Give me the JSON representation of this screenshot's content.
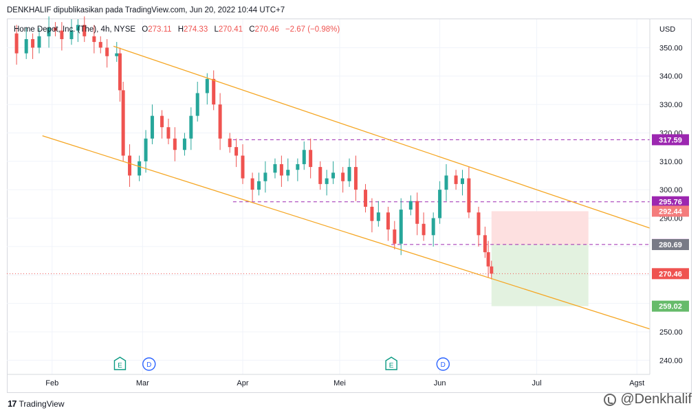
{
  "header": {
    "attribution": "DENKHALIF dipublikasikan pada TradingView.com, Jun 20, 2022 10:44 UTC+7"
  },
  "legend": {
    "symbol": "Home Depot, Inc. (The), 4h, NYSE",
    "open_label": "O",
    "open": "273.11",
    "high_label": "H",
    "high": "274.33",
    "low_label": "L",
    "low": "270.41",
    "close_label": "C",
    "close": "270.46",
    "change": "−2.67 (−0.98%)"
  },
  "footer": {
    "brand": "TradingView",
    "logo_glyph": "17",
    "watermark": "@Denkhalif"
  },
  "colors": {
    "up": "#26a69a",
    "down": "#ef5350",
    "channel": "#f5a623",
    "level": "#9c27b0",
    "profit_zone": "#e3f2e0",
    "loss_zone": "#fde0e0",
    "grid": "#f0f3fa",
    "axis_text": "#131722"
  },
  "chart_data": {
    "type": "candlestick",
    "symbol": "Home Depot, Inc. (The)",
    "interval": "4h",
    "exchange": "NYSE",
    "currency": "USD",
    "ylim": [
      235,
      360
    ],
    "x_range": [
      "2022-01-18",
      "2022-08-05"
    ],
    "x_ticks": [
      {
        "label": "Feb",
        "date": "2022-02-01"
      },
      {
        "label": "Mar",
        "date": "2022-03-01"
      },
      {
        "label": "Apr",
        "date": "2022-04-01"
      },
      {
        "label": "Mei",
        "date": "2022-05-01"
      },
      {
        "label": "Jun",
        "date": "2022-06-01"
      },
      {
        "label": "Jul",
        "date": "2022-07-01"
      },
      {
        "label": "Agst",
        "date": "2022-08-01"
      }
    ],
    "y_ticks": [
      "240.00",
      "250.00",
      "260.00",
      "270.00",
      "280.00",
      "290.00",
      "300.00",
      "310.00",
      "320.00",
      "330.00",
      "340.00",
      "350.00"
    ],
    "y_axis_label": "USD",
    "close_series": [
      {
        "date": "2022-01-19",
        "close": 355
      },
      {
        "date": "2022-01-21",
        "close": 348
      },
      {
        "date": "2022-01-24",
        "close": 353
      },
      {
        "date": "2022-01-26",
        "close": 350
      },
      {
        "date": "2022-01-28",
        "close": 354
      },
      {
        "date": "2022-01-31",
        "close": 357
      },
      {
        "date": "2022-02-02",
        "close": 356
      },
      {
        "date": "2022-02-04",
        "close": 353
      },
      {
        "date": "2022-02-07",
        "close": 356
      },
      {
        "date": "2022-02-09",
        "close": 358
      },
      {
        "date": "2022-02-11",
        "close": 354
      },
      {
        "date": "2022-02-14",
        "close": 352
      },
      {
        "date": "2022-02-16",
        "close": 350
      },
      {
        "date": "2022-02-18",
        "close": 347
      },
      {
        "date": "2022-02-21",
        "close": 348
      },
      {
        "date": "2022-02-22",
        "close": 335
      },
      {
        "date": "2022-02-23",
        "close": 312
      },
      {
        "date": "2022-02-25",
        "close": 305
      },
      {
        "date": "2022-02-28",
        "close": 310
      },
      {
        "date": "2022-03-02",
        "close": 318
      },
      {
        "date": "2022-03-04",
        "close": 326
      },
      {
        "date": "2022-03-07",
        "close": 322
      },
      {
        "date": "2022-03-09",
        "close": 318
      },
      {
        "date": "2022-03-11",
        "close": 314
      },
      {
        "date": "2022-03-14",
        "close": 318
      },
      {
        "date": "2022-03-16",
        "close": 326
      },
      {
        "date": "2022-03-18",
        "close": 334
      },
      {
        "date": "2022-03-21",
        "close": 339
      },
      {
        "date": "2022-03-23",
        "close": 330
      },
      {
        "date": "2022-03-25",
        "close": 318
      },
      {
        "date": "2022-03-28",
        "close": 315
      },
      {
        "date": "2022-03-30",
        "close": 312
      },
      {
        "date": "2022-04-01",
        "close": 304
      },
      {
        "date": "2022-04-04",
        "close": 300
      },
      {
        "date": "2022-04-06",
        "close": 303
      },
      {
        "date": "2022-04-08",
        "close": 306
      },
      {
        "date": "2022-04-11",
        "close": 309
      },
      {
        "date": "2022-04-13",
        "close": 305
      },
      {
        "date": "2022-04-15",
        "close": 307
      },
      {
        "date": "2022-04-18",
        "close": 309
      },
      {
        "date": "2022-04-20",
        "close": 314
      },
      {
        "date": "2022-04-22",
        "close": 308
      },
      {
        "date": "2022-04-25",
        "close": 302
      },
      {
        "date": "2022-04-27",
        "close": 304
      },
      {
        "date": "2022-04-29",
        "close": 306
      },
      {
        "date": "2022-05-02",
        "close": 303
      },
      {
        "date": "2022-05-04",
        "close": 308
      },
      {
        "date": "2022-05-06",
        "close": 300
      },
      {
        "date": "2022-05-09",
        "close": 294
      },
      {
        "date": "2022-05-11",
        "close": 289
      },
      {
        "date": "2022-05-13",
        "close": 292
      },
      {
        "date": "2022-05-16",
        "close": 286
      },
      {
        "date": "2022-05-18",
        "close": 281
      },
      {
        "date": "2022-05-20",
        "close": 293
      },
      {
        "date": "2022-05-23",
        "close": 296
      },
      {
        "date": "2022-05-25",
        "close": 288
      },
      {
        "date": "2022-05-27",
        "close": 284
      },
      {
        "date": "2022-05-30",
        "close": 290
      },
      {
        "date": "2022-06-01",
        "close": 300
      },
      {
        "date": "2022-06-03",
        "close": 305
      },
      {
        "date": "2022-06-06",
        "close": 302
      },
      {
        "date": "2022-06-08",
        "close": 304
      },
      {
        "date": "2022-06-10",
        "close": 292
      },
      {
        "date": "2022-06-13",
        "close": 284
      },
      {
        "date": "2022-06-15",
        "close": 278
      },
      {
        "date": "2022-06-16",
        "close": 273
      },
      {
        "date": "2022-06-17",
        "close": 270.46
      }
    ],
    "channel_lines": [
      {
        "name": "upper",
        "from": {
          "date": "2022-02-20",
          "price": 350.5
        },
        "to": {
          "date": "2022-08-05",
          "price": 286.5
        }
      },
      {
        "name": "lower",
        "from": {
          "date": "2022-01-29",
          "price": 319.0
        },
        "to": {
          "date": "2022-08-05",
          "price": 251.0
        }
      }
    ],
    "levels": [
      {
        "name": "resistance",
        "price": 317.59,
        "label": "317.59",
        "from": "2022-03-29",
        "to": "2022-08-05",
        "style": "dashed"
      },
      {
        "name": "support",
        "price": 295.76,
        "label": "295.76",
        "from": "2022-03-29",
        "to": "2022-08-05",
        "style": "dashed"
      },
      {
        "name": "entry",
        "price": 280.73,
        "label": "280.73",
        "from": "2022-05-17",
        "to": "2022-08-05",
        "style": "dashed"
      }
    ],
    "position": {
      "type": "short",
      "entry": 280.69,
      "entry_label": "280.69",
      "stop": 292.44,
      "stop_label": "292.44",
      "target": 259.02,
      "target_label": "259.02",
      "from": "2022-06-17",
      "to": "2022-07-17"
    },
    "last_price": {
      "price": 270.46,
      "label": "270.46"
    },
    "events": [
      {
        "type": "earnings",
        "glyph": "E",
        "date": "2022-02-22"
      },
      {
        "type": "dividend",
        "glyph": "D",
        "date": "2022-03-03"
      },
      {
        "type": "earnings",
        "glyph": "E",
        "date": "2022-05-17"
      },
      {
        "type": "dividend",
        "glyph": "D",
        "date": "2022-06-02"
      }
    ]
  }
}
